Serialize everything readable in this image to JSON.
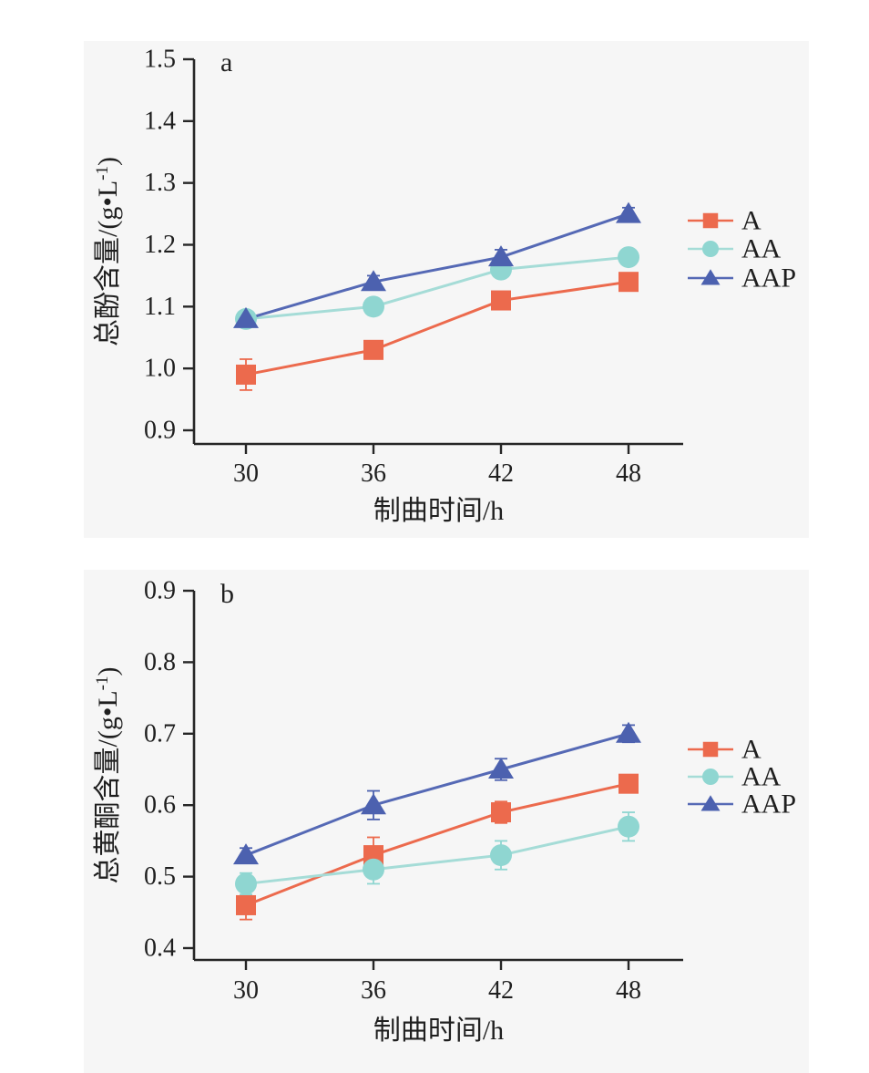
{
  "page": {
    "background": "#ffffff",
    "panel_background": "#f6f6f6",
    "axis_color": "#262626",
    "text_color": "#1f1f1f"
  },
  "chart_data": [
    {
      "id": "a",
      "type": "line",
      "panel_label": "a",
      "xlabel": "制曲时间/h",
      "ylabel": "总酚含量/(g•L⁻¹)",
      "ylabel_parts": {
        "pre": "总酚含量/(g•L",
        "sup": "-1",
        "post": ")"
      },
      "x": [
        30,
        36,
        42,
        48
      ],
      "xlim_ticks": [
        30,
        36,
        42,
        48
      ],
      "ylim": [
        0.9,
        1.5
      ],
      "yticks": [
        0.9,
        1.0,
        1.1,
        1.2,
        1.3,
        1.4,
        1.5
      ],
      "grid": false,
      "legend_position": "right-outside",
      "series": [
        {
          "name": "A",
          "marker": "square",
          "color": "#EC6A4D",
          "line_color": "#EC6A4D",
          "values": [
            0.99,
            1.03,
            1.11,
            1.14
          ],
          "errors": [
            0.025,
            0.008,
            0.008,
            0.008
          ]
        },
        {
          "name": "AA",
          "marker": "circle",
          "color": "#8FD6D1",
          "line_color": "#A5DCD7",
          "values": [
            1.08,
            1.1,
            1.16,
            1.18
          ],
          "errors": [
            0.008,
            0.01,
            0.01,
            0.008
          ]
        },
        {
          "name": "AAP",
          "marker": "triangle",
          "color": "#4C61AF",
          "line_color": "#5569B5",
          "values": [
            1.08,
            1.14,
            1.18,
            1.25
          ],
          "errors": [
            0.008,
            0.01,
            0.012,
            0.01
          ]
        }
      ],
      "legend": [
        "A",
        "AA",
        "AAP"
      ]
    },
    {
      "id": "b",
      "type": "line",
      "panel_label": "b",
      "xlabel": "制曲时间/h",
      "ylabel": "总黄酮含量/(g•L⁻¹)",
      "ylabel_parts": {
        "pre": "总黄酮含量/(g•L",
        "sup": "-1",
        "post": ")"
      },
      "x": [
        30,
        36,
        42,
        48
      ],
      "xlim_ticks": [
        30,
        36,
        42,
        48
      ],
      "ylim": [
        0.4,
        0.9
      ],
      "yticks": [
        0.4,
        0.5,
        0.6,
        0.7,
        0.8,
        0.9
      ],
      "grid": false,
      "legend_position": "right-outside",
      "series": [
        {
          "name": "A",
          "marker": "square",
          "color": "#EC6A4D",
          "line_color": "#EC6A4D",
          "values": [
            0.46,
            0.53,
            0.59,
            0.63
          ],
          "errors": [
            0.02,
            0.025,
            0.015,
            0.01
          ]
        },
        {
          "name": "AA",
          "marker": "circle",
          "color": "#8FD6D1",
          "line_color": "#A5DCD7",
          "values": [
            0.49,
            0.51,
            0.53,
            0.57
          ],
          "errors": [
            0.015,
            0.02,
            0.02,
            0.02
          ]
        },
        {
          "name": "AAP",
          "marker": "triangle",
          "color": "#4C61AF",
          "line_color": "#5569B5",
          "values": [
            0.53,
            0.6,
            0.65,
            0.7
          ],
          "errors": [
            0.01,
            0.02,
            0.015,
            0.012
          ]
        }
      ],
      "legend": [
        "A",
        "AA",
        "AAP"
      ]
    }
  ]
}
